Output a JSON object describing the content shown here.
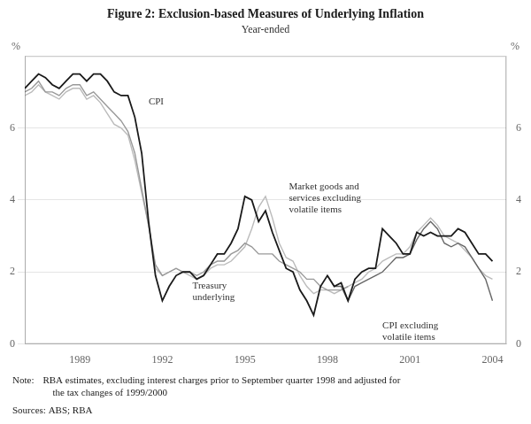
{
  "chart_data": {
    "type": "line",
    "title": "Figure 2: Exclusion-based Measures of Underlying Inflation",
    "subtitle": "Year-ended",
    "ylabel": "%",
    "y2label": "%",
    "note_label": "Note:",
    "note_text": "RBA estimates, excluding interest charges prior to September quarter 1998 and adjusted for\n    the tax changes of 1999/2000",
    "sources": "Sources: ABS; RBA",
    "x": [
      1987.0,
      1987.25,
      1987.5,
      1987.75,
      1988.0,
      1988.25,
      1988.5,
      1988.75,
      1989.0,
      1989.25,
      1989.5,
      1989.75,
      1990.0,
      1990.25,
      1990.5,
      1990.75,
      1991.0,
      1991.25,
      1991.5,
      1991.75,
      1992.0,
      1992.25,
      1992.5,
      1992.75,
      1993.0,
      1993.25,
      1993.5,
      1993.75,
      1994.0,
      1994.25,
      1994.5,
      1994.75,
      1995.0,
      1995.25,
      1995.5,
      1995.75,
      1996.0,
      1996.25,
      1996.5,
      1996.75,
      1997.0,
      1997.25,
      1997.5,
      1997.75,
      1998.0,
      1998.25,
      1998.5,
      1998.75,
      1999.0,
      1999.25,
      1999.5,
      1999.75,
      2000.0,
      2000.25,
      2000.5,
      2000.75,
      2001.0,
      2001.25,
      2001.5,
      2001.75,
      2002.0,
      2002.25,
      2002.5,
      2002.75,
      2003.0,
      2003.25,
      2003.5,
      2003.75,
      2004.0
    ],
    "series": [
      {
        "color": "#bbbbbb",
        "values": [
          6.9,
          7.0,
          7.2,
          7.0,
          6.9,
          6.8,
          7.0,
          7.1,
          7.1,
          6.8,
          6.9,
          6.7,
          6.4,
          6.1,
          6.0,
          5.8,
          5.1,
          4.2,
          3.3,
          2.1,
          1.9,
          2.0,
          2.1,
          2.0,
          1.9,
          1.8,
          1.9,
          2.1,
          2.2,
          2.2,
          2.3,
          2.5,
          2.7,
          3.2,
          3.8,
          4.1,
          3.5,
          2.8,
          2.4,
          2.3,
          1.9,
          1.6,
          1.4,
          1.5,
          1.5,
          1.4,
          1.5,
          1.6,
          1.7,
          1.8,
          2.0,
          2.1,
          2.3,
          2.4,
          2.5,
          2.5,
          2.7,
          3.1,
          3.3,
          3.5,
          3.3,
          3.0,
          2.9,
          2.8,
          2.6,
          2.4,
          2.1,
          1.9,
          1.8
        ]
      },
      {
        "color": "#999999",
        "values": [
          7.0,
          7.1,
          7.3,
          7.0,
          7.0,
          6.9,
          7.1,
          7.2,
          7.2,
          6.9,
          7.0,
          6.8,
          6.6,
          6.4,
          6.2,
          5.9,
          5.3,
          4.3,
          3.3,
          2.2,
          1.9,
          2.0,
          2.1,
          2.0,
          2.0,
          1.9,
          2.0,
          2.2,
          2.3,
          2.3,
          2.5,
          2.6,
          2.8,
          2.7,
          2.5,
          2.5,
          2.5,
          2.3,
          2.2,
          2.1,
          2.0,
          1.8,
          1.8,
          1.6,
          1.5,
          1.5,
          1.5,
          1.6,
          null,
          null,
          null,
          null,
          null,
          null,
          null,
          null,
          null,
          null,
          null,
          null,
          null,
          null,
          null,
          null,
          null,
          null,
          null,
          null,
          null
        ]
      },
      {
        "color": "#666666",
        "values": [
          null,
          null,
          null,
          null,
          null,
          null,
          null,
          null,
          null,
          null,
          null,
          null,
          null,
          null,
          null,
          null,
          null,
          null,
          null,
          null,
          null,
          null,
          null,
          null,
          null,
          null,
          null,
          null,
          null,
          null,
          null,
          null,
          null,
          null,
          null,
          null,
          null,
          null,
          null,
          null,
          null,
          null,
          null,
          null,
          1.9,
          1.6,
          1.6,
          1.2,
          1.6,
          1.7,
          1.8,
          1.9,
          2.0,
          2.2,
          2.4,
          2.4,
          2.5,
          2.9,
          3.2,
          3.4,
          3.2,
          2.8,
          2.7,
          2.8,
          2.7,
          2.4,
          2.1,
          1.8,
          1.2
        ]
      },
      {
        "color": "#1a1a1a",
        "values": [
          7.1,
          7.3,
          7.5,
          7.4,
          7.2,
          7.1,
          7.3,
          7.5,
          7.5,
          7.3,
          7.5,
          7.5,
          7.3,
          7.0,
          6.9,
          6.9,
          6.3,
          5.3,
          3.4,
          1.9,
          1.2,
          1.6,
          1.9,
          2.0,
          2.0,
          1.8,
          1.9,
          2.2,
          2.5,
          2.5,
          2.8,
          3.2,
          4.1,
          4.0,
          3.4,
          3.7,
          3.1,
          2.6,
          2.1,
          2.0,
          1.5,
          1.2,
          0.8,
          1.6,
          1.9,
          1.6,
          1.7,
          1.2,
          1.8,
          2.0,
          2.1,
          2.1,
          3.2,
          3.0,
          2.8,
          2.5,
          2.5,
          3.1,
          3.0,
          3.1,
          3.0,
          3.0,
          3.0,
          3.2,
          3.1,
          2.8,
          2.5,
          2.5,
          2.3
        ]
      }
    ],
    "annotations": [
      {
        "text": "CPI",
        "x": 1991.5,
        "y": 6.85
      },
      {
        "text": "Treasury\nunderlying",
        "x": 1993.1,
        "y": 1.75
      },
      {
        "text": "Market goods and\nservices excluding\nvolatile items",
        "x": 1996.6,
        "y": 4.5
      },
      {
        "text": "CPI excluding\nvolatile items",
        "x": 2000.0,
        "y": 0.65
      }
    ],
    "xlim": [
      1987.0,
      2004.5
    ],
    "xticks": [
      1989,
      1992,
      1995,
      1998,
      2001,
      2004
    ],
    "ylim": [
      0,
      8
    ],
    "yticks": [
      0,
      2,
      4,
      6
    ],
    "y2lim": [
      0,
      8
    ],
    "y2ticks": [
      0,
      2,
      4,
      6
    ],
    "grid": "y"
  }
}
